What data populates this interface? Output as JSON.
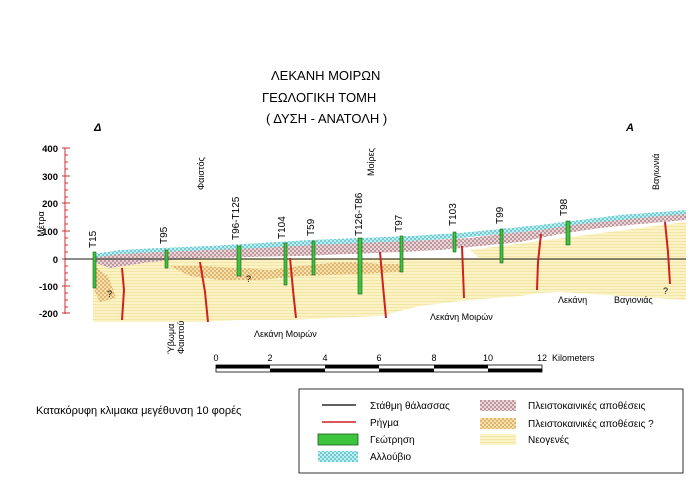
{
  "title": {
    "line1": "ΛΕΚΑΝΗ ΜΟΙΡΩΝ",
    "line2": "ΓΕΩΛΟΓΙΚΗ  ΤΟΜΗ",
    "line3": "( ΔΥΣΗ - ΑΝΑΤΟΛΗ )"
  },
  "direction": {
    "west": "Δ",
    "east": "Α"
  },
  "axis": {
    "label": "Μέτρα",
    "ticks": [
      "400",
      "300",
      "200",
      "100",
      "0",
      "-100",
      "-200"
    ]
  },
  "boreholes": [
    {
      "id": "T15"
    },
    {
      "id": "T95"
    },
    {
      "id": "T96-T125"
    },
    {
      "id": "T104"
    },
    {
      "id": "T59"
    },
    {
      "id": "T126-T86"
    },
    {
      "id": "T97"
    },
    {
      "id": "T103"
    },
    {
      "id": "T99"
    },
    {
      "id": "T98"
    }
  ],
  "places": {
    "phaistos": "Φαιστός",
    "moires": "Μοίρες",
    "vagionia": "Βαγιωνιά",
    "ymvos_line1": "Ύβωμα",
    "ymvos_line2": "Φαιστού",
    "lekani_moiron_1": "Λεκάνη Μοιρών",
    "lekani_moiron_2": "Λεκάνη Μοιρών",
    "lekani": "Λεκάνη",
    "vagionias": "Βαγιονιάς",
    "q1": "?",
    "q2": "?",
    "q3": "?"
  },
  "scale_bar": {
    "ticks": [
      "0",
      "2",
      "4",
      "6",
      "8",
      "10",
      "12"
    ],
    "unit": "Kilometers"
  },
  "note": "Κατακόρυφη κλιμακα μεγέθυνση 10 φορές",
  "legend": {
    "sea_level": "Στάθμη θάλασσας",
    "fault": "Ρήγμα",
    "borehole": "Γεώτρηση",
    "alluvium": "Αλλούβιο",
    "pleistocene": "Πλειστοκαινικές αποθέσεις",
    "pleistocene_q": "Πλειστοκαινικές αποθέσεις ?",
    "neogene": "Νεογενές"
  },
  "colors": {
    "alluvium": "#7fd6d6",
    "pleistocene": "#b98585",
    "pleistocene_q": "#e0b060",
    "neogene": "#f8f0b8",
    "fault": "#d02020",
    "borehole": "#3cc43c",
    "axis": "#d03030"
  }
}
